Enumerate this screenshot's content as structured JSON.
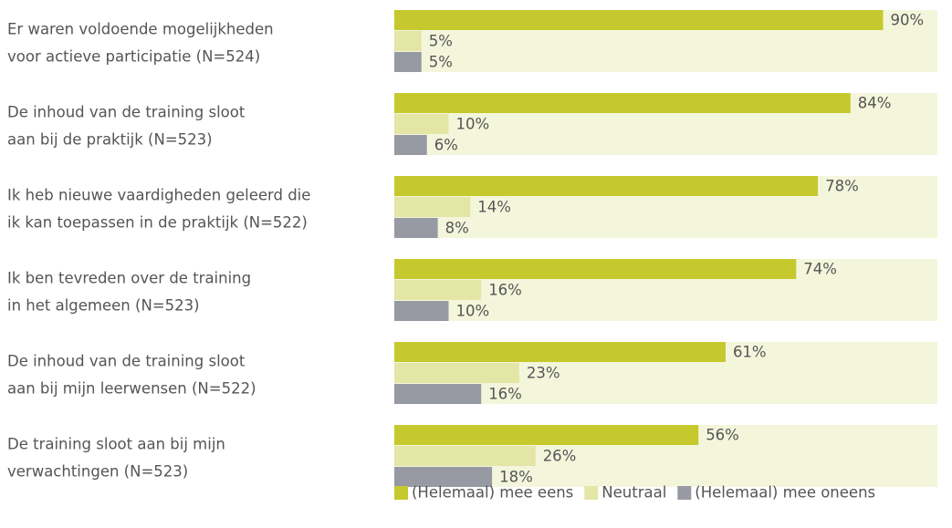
{
  "chart_data": {
    "type": "hbar-grouped",
    "categories": [
      [
        "Er waren voldoende mogelijkheden",
        "voor actieve participatie (N=524)"
      ],
      [
        "De inhoud van de training sloot",
        "aan bij de praktijk (N=523)"
      ],
      [
        "Ik heb nieuwe vaardigheden geleerd die",
        "ik kan toepassen in de praktijk (N=522)"
      ],
      [
        "Ik ben tevreden over de training",
        "in het algemeen (N=523)"
      ],
      [
        "De inhoud van de training sloot",
        "aan bij mijn leerwensen (N=522)"
      ],
      [
        "De training sloot aan bij mijn",
        "verwachtingen (N=523)"
      ]
    ],
    "series": [
      {
        "name": "(Helemaal) mee eens",
        "color": "#c5c92e",
        "values": [
          90,
          84,
          78,
          74,
          61,
          56
        ],
        "value_labels": [
          "90%",
          "84%",
          "78%",
          "74%",
          "61%",
          "56%"
        ]
      },
      {
        "name": "Neutraal",
        "color": "#e3e6a5",
        "values": [
          5,
          10,
          14,
          16,
          23,
          26
        ],
        "value_labels": [
          "5%",
          "10%",
          "14%",
          "16%",
          "23%",
          "26%"
        ]
      },
      {
        "name": "(Helemaal) mee oneens",
        "color": "#979aa3",
        "values": [
          5,
          6,
          8,
          10,
          16,
          18
        ],
        "value_labels": [
          "5%",
          "6%",
          "8%",
          "10%",
          "16%",
          "18%"
        ]
      }
    ],
    "xlim": [
      0,
      100
    ],
    "background_color": "#f4f6dc",
    "legend": "bottom-right"
  }
}
